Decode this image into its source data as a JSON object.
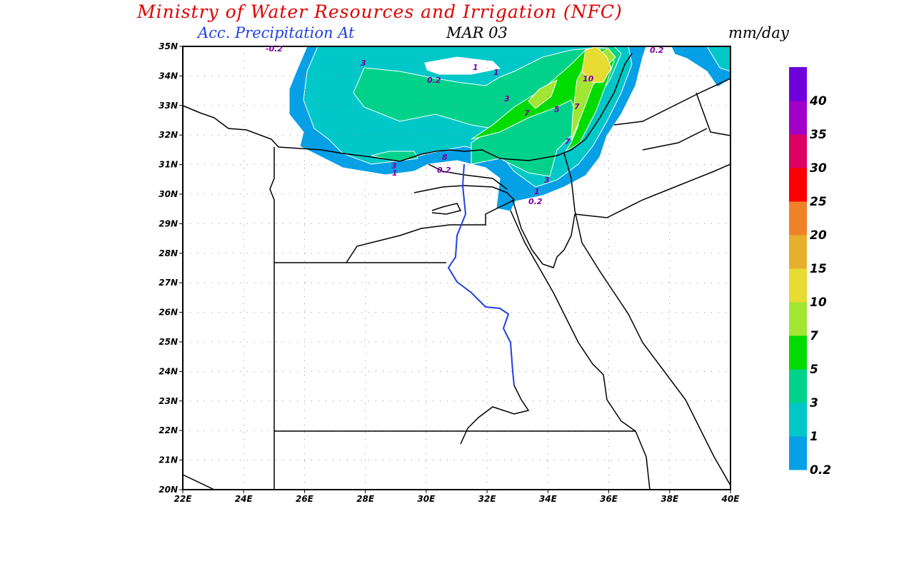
{
  "header": {
    "title": "Ministry of Water Resources and Irrigation (NFC)",
    "subtitle": "Acc. Precipitation  At",
    "date": "MAR 03",
    "units": "mm/day"
  },
  "axes": {
    "lat_labels": [
      "20N",
      "21N",
      "22N",
      "23N",
      "24N",
      "25N",
      "26N",
      "27N",
      "28N",
      "29N",
      "30N",
      "31N",
      "32N",
      "33N",
      "34N",
      "35N"
    ],
    "lon_labels": [
      "22E",
      "24E",
      "26E",
      "28E",
      "30E",
      "32E",
      "34E",
      "36E",
      "38E",
      "40E"
    ],
    "lat_range": [
      20,
      35
    ],
    "lon_range": [
      22,
      40
    ]
  },
  "colorbar": {
    "labels": [
      "0.2",
      "1",
      "3",
      "5",
      "7",
      "10",
      "15",
      "20",
      "25",
      "30",
      "35",
      "40"
    ],
    "colors": [
      "#06a0e6",
      "#00c8c8",
      "#00d28c",
      "#00dc00",
      "#a0e632",
      "#e6dc32",
      "#e6af2d",
      "#f08228",
      "#fa0000",
      "#dc0064",
      "#a000c8",
      "#6e00dc"
    ]
  },
  "contour_labels": [
    "3",
    "1",
    "1",
    "0.2",
    "3",
    "10",
    "7",
    "5",
    "7",
    "7",
    "3",
    "1",
    "8",
    "0.2",
    "3",
    "1",
    "0.2",
    "0.2",
    "-0.2"
  ]
}
